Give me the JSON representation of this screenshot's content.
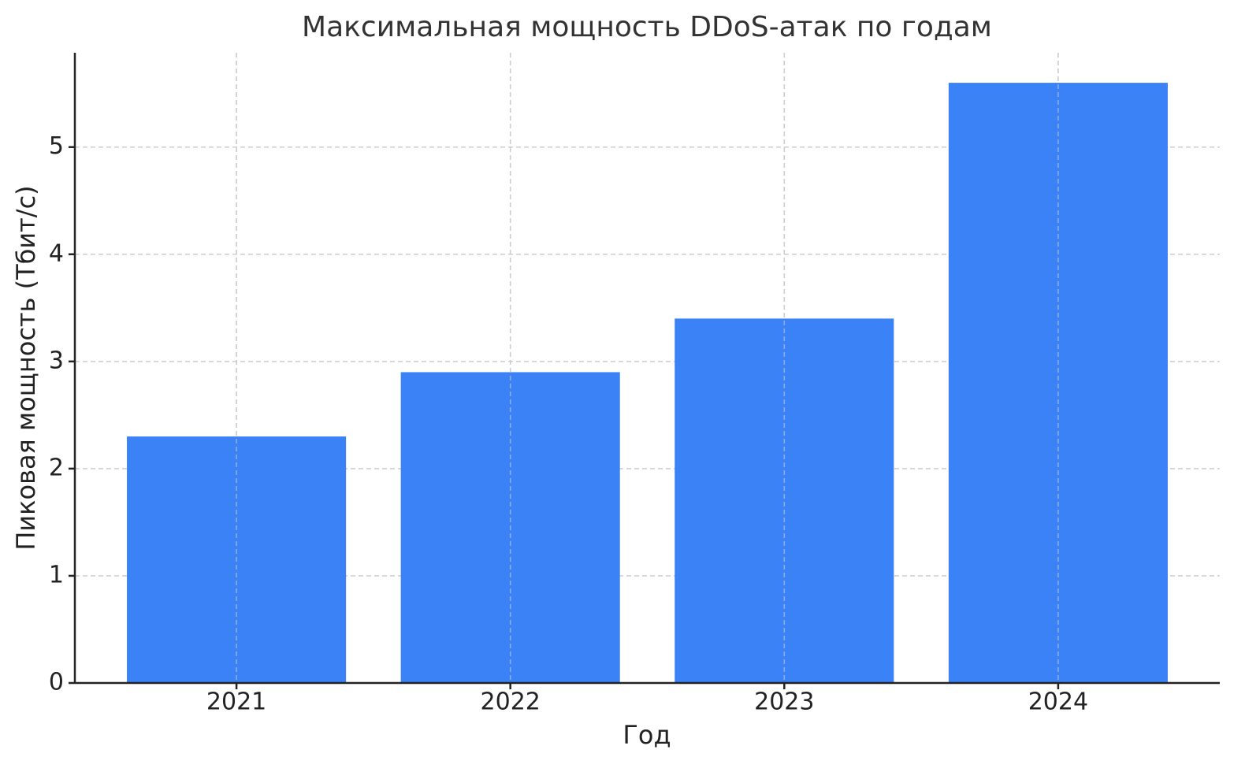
{
  "chart_data": {
    "type": "bar",
    "title": "Максимальная мощность DDoS-атак по годам",
    "x_label": "Год",
    "y_label": "Пиковая мощность (Тбит/с)",
    "categories": [
      "2021",
      "2022",
      "2023",
      "2024"
    ],
    "values": [
      2.3,
      2.9,
      3.4,
      5.6
    ],
    "color": "#3b82f6",
    "ylim": [
      0,
      5.88
    ],
    "yticks": [
      0,
      1,
      2,
      3,
      4,
      5
    ],
    "grid": true
  }
}
